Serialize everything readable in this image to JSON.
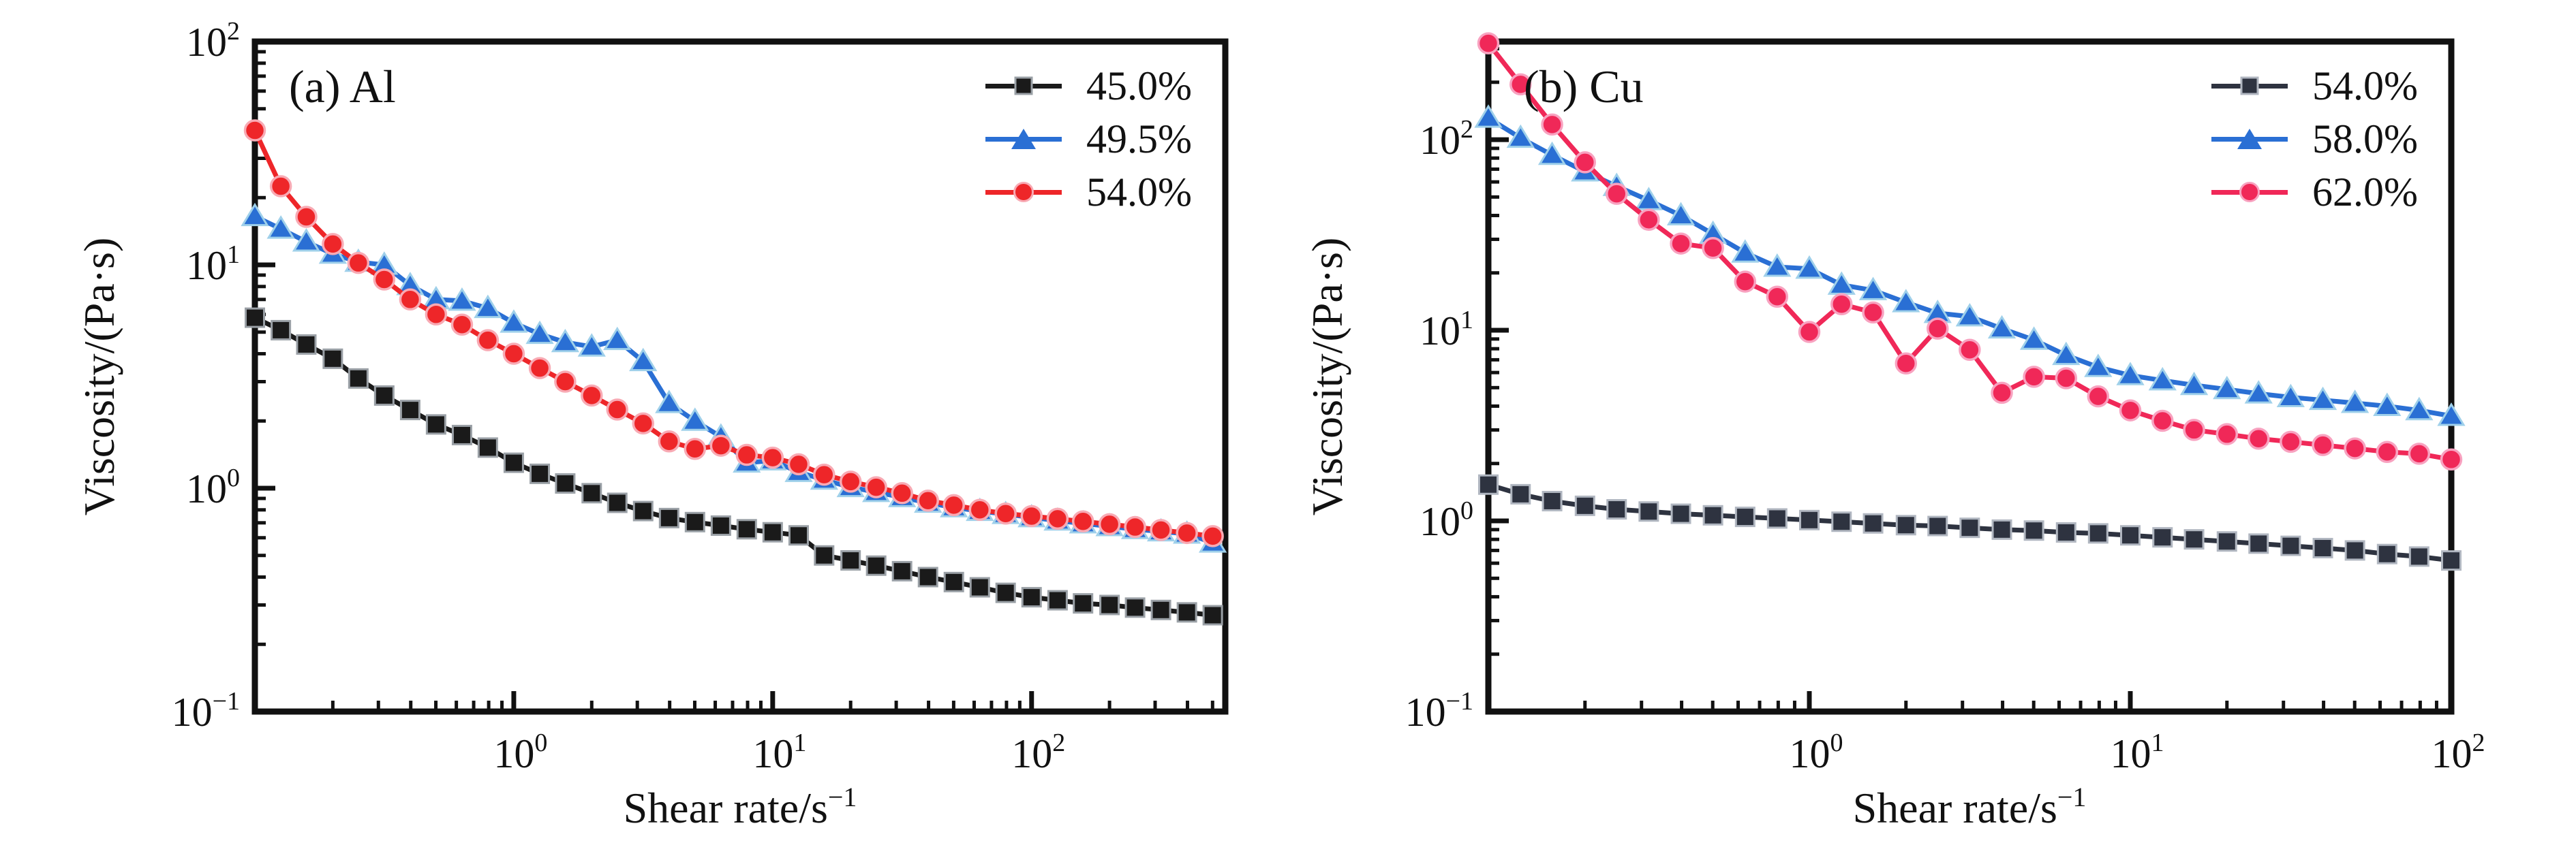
{
  "figure": {
    "background": "#ffffff",
    "text_color": "#111111",
    "axis_color": "#111111"
  },
  "chart_data": [
    {
      "id": "panel-a",
      "type": "line",
      "panel_label": "(a) Al",
      "xlabel": {
        "text": "Shear rate/s",
        "sup": "−1"
      },
      "ylabel": "Viscosity/(Pa·s)",
      "xscale": "log",
      "yscale": "log",
      "xlim": [
        0.1,
        560
      ],
      "ylim": [
        0.1,
        100
      ],
      "grid": false,
      "legend_position": "top-right",
      "x_ticks": [
        {
          "value": 1,
          "exp": "0"
        },
        {
          "value": 10,
          "exp": "1"
        },
        {
          "value": 100,
          "exp": "2"
        }
      ],
      "y_ticks": [
        {
          "value": 0.1,
          "exp": "−1"
        },
        {
          "value": 1,
          "exp": "0"
        },
        {
          "value": 10,
          "exp": "1"
        },
        {
          "value": 100,
          "exp": "2"
        }
      ],
      "x": [
        0.1,
        0.126,
        0.158,
        0.2,
        0.251,
        0.316,
        0.398,
        0.501,
        0.631,
        0.794,
        1.0,
        1.26,
        1.58,
        2.0,
        2.51,
        3.16,
        3.98,
        5.01,
        6.31,
        7.94,
        10,
        12.6,
        15.8,
        20,
        25.1,
        31.6,
        39.8,
        50.1,
        63.1,
        79.4,
        100,
        126,
        158,
        200,
        251,
        316,
        398,
        501
      ],
      "series": [
        {
          "name": "45.0%",
          "marker": "square",
          "color": "#1a1a1a",
          "edge_color": "#9aa0a6",
          "values": [
            5.8,
            5.1,
            4.4,
            3.8,
            3.1,
            2.6,
            2.24,
            1.93,
            1.73,
            1.52,
            1.3,
            1.16,
            1.05,
            0.95,
            0.86,
            0.79,
            0.735,
            0.705,
            0.68,
            0.655,
            0.635,
            0.615,
            0.5,
            0.475,
            0.45,
            0.425,
            0.4,
            0.38,
            0.36,
            0.34,
            0.325,
            0.315,
            0.305,
            0.3,
            0.292,
            0.285,
            0.278,
            0.27
          ]
        },
        {
          "name": "49.5%",
          "marker": "triangle",
          "color": "#2a6fd4",
          "edge_color": "#9fd0ea",
          "values": [
            16.5,
            14.5,
            12.7,
            11.2,
            10.3,
            10.0,
            8.1,
            7.0,
            6.9,
            6.4,
            5.5,
            4.9,
            4.5,
            4.3,
            4.6,
            3.7,
            2.4,
            2.0,
            1.7,
            1.3,
            1.33,
            1.18,
            1.09,
            1.01,
            0.96,
            0.91,
            0.86,
            0.82,
            0.79,
            0.765,
            0.74,
            0.715,
            0.695,
            0.675,
            0.655,
            0.64,
            0.625,
            0.57
          ]
        },
        {
          "name": "54.0%",
          "marker": "circle",
          "color": "#ee2629",
          "edge_color": "#f8aab4",
          "values": [
            40,
            22.5,
            16.4,
            12.4,
            10.2,
            8.6,
            7.0,
            6.0,
            5.4,
            4.6,
            4.0,
            3.45,
            3.0,
            2.6,
            2.25,
            1.95,
            1.62,
            1.5,
            1.55,
            1.41,
            1.37,
            1.28,
            1.15,
            1.07,
            1.01,
            0.95,
            0.88,
            0.84,
            0.8,
            0.77,
            0.75,
            0.73,
            0.71,
            0.69,
            0.67,
            0.65,
            0.63,
            0.61
          ]
        }
      ]
    },
    {
      "id": "panel-b",
      "type": "line",
      "panel_label": "(b) Cu",
      "xlabel": {
        "text": "Shear rate/s",
        "sup": "−1"
      },
      "ylabel": "Viscosity/(Pa·s)",
      "xscale": "log",
      "yscale": "log",
      "xlim": [
        0.1,
        100
      ],
      "ylim": [
        0.1,
        327
      ],
      "grid": false,
      "legend_position": "top-right",
      "x_ticks": [
        {
          "value": 1,
          "exp": "0"
        },
        {
          "value": 10,
          "exp": "1"
        },
        {
          "value": 100,
          "exp": "2"
        }
      ],
      "y_ticks": [
        {
          "value": 0.1,
          "exp": "−1"
        },
        {
          "value": 1,
          "exp": "0"
        },
        {
          "value": 10,
          "exp": "1"
        },
        {
          "value": 100,
          "exp": "2"
        }
      ],
      "x": [
        0.1,
        0.126,
        0.158,
        0.2,
        0.251,
        0.316,
        0.398,
        0.501,
        0.631,
        0.794,
        1.0,
        1.26,
        1.58,
        2.0,
        2.51,
        3.16,
        3.98,
        5.01,
        6.31,
        7.94,
        10,
        12.6,
        15.8,
        20,
        25.1,
        31.6,
        39.8,
        50.1,
        63.1,
        79.4,
        100
      ],
      "series": [
        {
          "name": "54.0%",
          "marker": "square",
          "color": "#2e3340",
          "edge_color": "#b0b6c0",
          "values": [
            1.55,
            1.38,
            1.27,
            1.2,
            1.15,
            1.12,
            1.09,
            1.07,
            1.05,
            1.03,
            1.01,
            0.99,
            0.97,
            0.95,
            0.94,
            0.92,
            0.9,
            0.89,
            0.87,
            0.86,
            0.84,
            0.82,
            0.8,
            0.78,
            0.76,
            0.74,
            0.72,
            0.7,
            0.67,
            0.65,
            0.62
          ]
        },
        {
          "name": "58.0%",
          "marker": "triangle",
          "color": "#2a6fd4",
          "edge_color": "#9fd0ea",
          "values": [
            130,
            102,
            83,
            68,
            57,
            48,
            40,
            32,
            25.5,
            21.5,
            21.0,
            17.3,
            16.2,
            14.0,
            12.3,
            11.8,
            10.2,
            8.9,
            7.4,
            6.4,
            5.8,
            5.45,
            5.15,
            4.9,
            4.65,
            4.45,
            4.3,
            4.15,
            4.0,
            3.8,
            3.55
          ]
        },
        {
          "name": "62.0%",
          "marker": "circle",
          "color": "#f02858",
          "edge_color": "#f8a2c0",
          "values": [
            320,
            195,
            120,
            76,
            52,
            38,
            28.5,
            27.0,
            18.0,
            15.0,
            9.8,
            13.7,
            12.4,
            6.7,
            10.2,
            7.9,
            4.7,
            5.7,
            5.6,
            4.5,
            3.8,
            3.35,
            3.0,
            2.85,
            2.7,
            2.6,
            2.5,
            2.4,
            2.3,
            2.25,
            2.1
          ]
        }
      ]
    }
  ]
}
